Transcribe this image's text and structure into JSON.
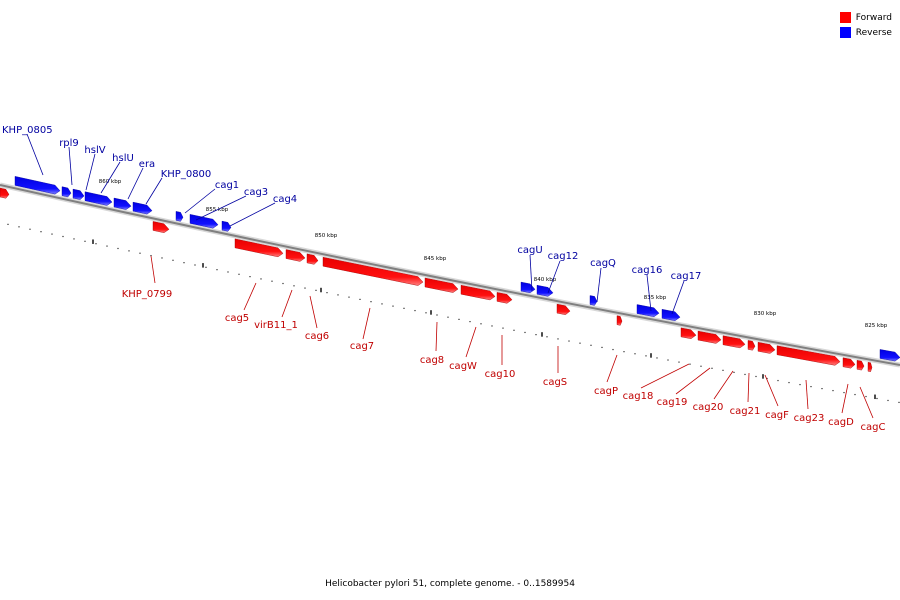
{
  "colors": {
    "forward": "#ff0000",
    "reverse": "#0000ff",
    "backbone": "#808080"
  },
  "legend": {
    "forward_label": "Forward",
    "reverse_label": "Reverse"
  },
  "caption": "Helicobacter pylori 51, complete genome. - 0..1589954",
  "scale_labels": [
    "860 kbp",
    "855 kbp",
    "850 kbp",
    "845 kbp",
    "840 kbp",
    "835 kbp",
    "830 kbp",
    "825 kbp"
  ],
  "reverse_genes": [
    "KHP_0805",
    "rpl9",
    "hslV",
    "hslU",
    "era",
    "KHP_0800",
    "cag1",
    "cag3",
    "cag4",
    "cagU",
    "cag12",
    "cagQ",
    "cag16",
    "cag17"
  ],
  "forward_genes": [
    "KHP_0799",
    "cag5",
    "virB11_1",
    "cag6",
    "cag7",
    "cag8",
    "cagW",
    "cag10",
    "cagS",
    "cagP",
    "cag18",
    "cag19",
    "cag20",
    "cag21",
    "cagF",
    "cag23",
    "cagD",
    "cagC"
  ]
}
